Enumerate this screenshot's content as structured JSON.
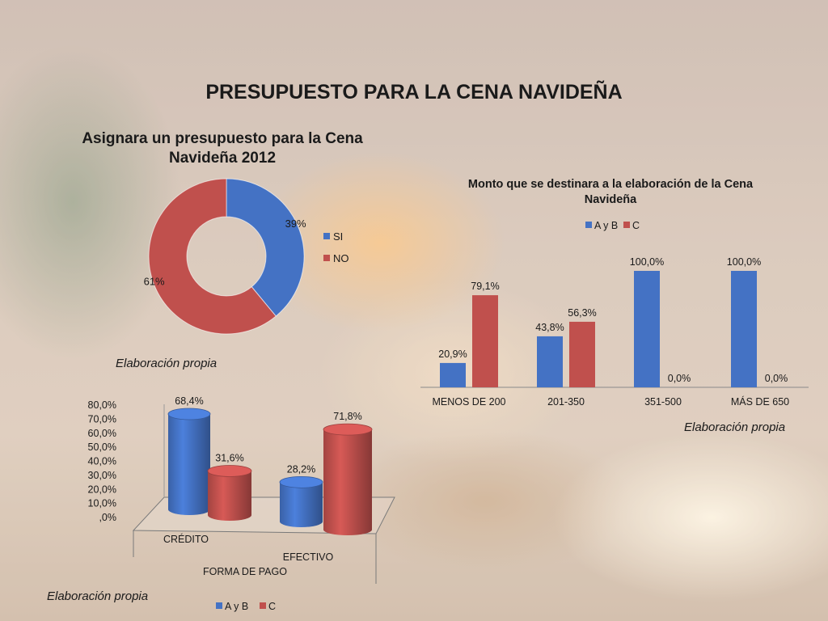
{
  "page": {
    "title": "PRESUPUESTO PARA LA CENA NAVIDEÑA"
  },
  "colors": {
    "blue": "#4472c4",
    "red": "#c0504d"
  },
  "chart_data": [
    {
      "type": "pie",
      "title": "Asignara un presupuesto para la Cena Navideña 2012",
      "labels": [
        "SI",
        "NO"
      ],
      "values": [
        39,
        61
      ],
      "data_labels": [
        "39%",
        "61%"
      ],
      "donut": true,
      "legend": "right",
      "source": "Elaboración propia"
    },
    {
      "type": "bar",
      "title": "Monto que se destinara a la elaboración de la Cena Navideña",
      "categories": [
        "MENOS DE 200",
        "201-350",
        "351-500",
        "MÁS DE 650"
      ],
      "series": [
        {
          "name": "A y B",
          "values": [
            20.9,
            43.8,
            100.0,
            100.0
          ],
          "labels": [
            "20,9%",
            "43,8%",
            "100,0%",
            "100,0%"
          ]
        },
        {
          "name": "C",
          "values": [
            79.1,
            56.3,
            0.0,
            0.0
          ],
          "labels": [
            "79,1%",
            "56,3%",
            "0,0%",
            "0,0%"
          ]
        }
      ],
      "ylim": [
        0,
        100
      ],
      "legend": "top",
      "source": "Elaboración propia"
    },
    {
      "type": "bar",
      "three_d": true,
      "title": "",
      "xlabel": "FORMA DE PAGO",
      "categories": [
        "CRÉDITO",
        "EFECTIVO"
      ],
      "series": [
        {
          "name": "A y B",
          "values": [
            68.4,
            28.2
          ],
          "labels": [
            "68,4%",
            "28,2%"
          ]
        },
        {
          "name": "C",
          "values": [
            31.6,
            71.8
          ],
          "labels": [
            "31,6%",
            "71,8%"
          ]
        }
      ],
      "ylim": [
        0,
        80
      ],
      "yticks": [
        "80,0%",
        "70,0%",
        "60,0%",
        "50,0%",
        "40,0%",
        "30,0%",
        "20,0%",
        "10,0%",
        ",0%"
      ],
      "legend": "bottom",
      "source": "Elaboración propia"
    }
  ]
}
